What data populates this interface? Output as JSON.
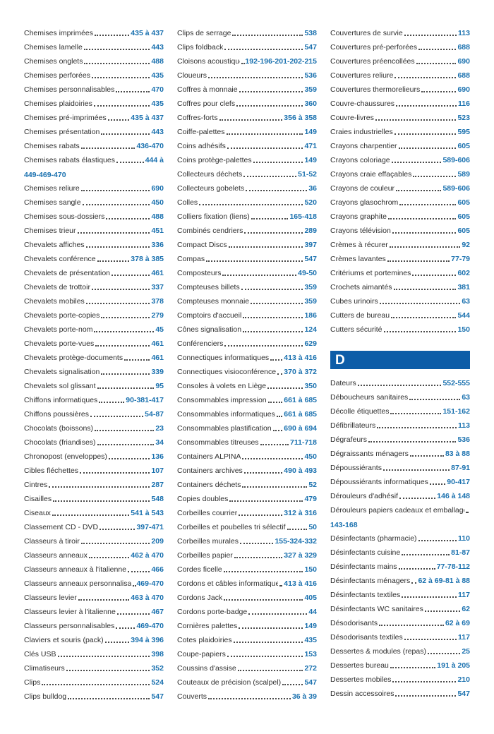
{
  "colors": {
    "label": "#2f2f2f",
    "pages": "#1a71af",
    "leader": "#4a4a4a",
    "section_bar": "#0d5da8",
    "section_letter": "#ffffff"
  },
  "columns": [
    {
      "items": [
        {
          "label": "Chemises imprimées",
          "pages": "435 à 437"
        },
        {
          "label": "Chemises lamelle",
          "pages": "443"
        },
        {
          "label": "Chemises onglets",
          "pages": "488"
        },
        {
          "label": "Chemises perforées",
          "pages": "435"
        },
        {
          "label": "Chemises personnalisables",
          "pages": "470"
        },
        {
          "label": "Chemises plaidoiries",
          "pages": "435"
        },
        {
          "label": "Chemises pré-imprimées",
          "pages": "435 à 437"
        },
        {
          "label": "Chemises présentation",
          "pages": "443"
        },
        {
          "label": "Chemises rabats",
          "pages": "436-470"
        },
        {
          "label": "Chemises rabats élastiques",
          "pages": "444 à",
          "cont": "449-469-470"
        },
        {
          "label": "Chemises reliure",
          "pages": "690"
        },
        {
          "label": "Chemises sangle",
          "pages": "450"
        },
        {
          "label": "Chemises sous-dossiers",
          "pages": "488"
        },
        {
          "label": "Chemises trieur",
          "pages": "451"
        },
        {
          "label": "Chevalets affiches",
          "pages": "336"
        },
        {
          "label": "Chevalets conférence",
          "pages": "378 à 385"
        },
        {
          "label": "Chevalets de présentation",
          "pages": "461"
        },
        {
          "label": "Chevalets de trottoir",
          "pages": "337"
        },
        {
          "label": "Chevalets mobiles",
          "pages": "378"
        },
        {
          "label": "Chevalets porte-copies",
          "pages": "279"
        },
        {
          "label": "Chevalets porte-nom",
          "pages": "45"
        },
        {
          "label": "Chevalets porte-vues",
          "pages": "461"
        },
        {
          "label": "Chevalets protège-documents",
          "pages": "461"
        },
        {
          "label": "Chevalets signalisation",
          "pages": "339"
        },
        {
          "label": "Chevalets sol glissant",
          "pages": "95"
        },
        {
          "label": "Chiffons informatiques",
          "pages": "90-381-417"
        },
        {
          "label": "Chiffons poussières",
          "pages": "54-87"
        },
        {
          "label": "Chocolats (boissons)",
          "pages": "23"
        },
        {
          "label": "Chocolats (friandises)",
          "pages": "34"
        },
        {
          "label": "Chronopost (enveloppes)",
          "pages": "136"
        },
        {
          "label": "Cibles fléchettes",
          "pages": "107"
        },
        {
          "label": "Cintres",
          "pages": "287"
        },
        {
          "label": "Cisailles",
          "pages": "548"
        },
        {
          "label": "Ciseaux",
          "pages": "541 à 543"
        },
        {
          "label": "Classement CD - DVD",
          "pages": "397-471"
        },
        {
          "label": "Classeurs à tiroir",
          "pages": "209"
        },
        {
          "label": "Classeurs anneaux",
          "pages": "462 à 470"
        },
        {
          "label": "Classeurs anneaux à l'italienne",
          "pages": "466"
        },
        {
          "label": "Classeurs anneaux personnalisables",
          "pages": "469-470"
        },
        {
          "label": "Classeurs levier",
          "pages": "463 à 470"
        },
        {
          "label": "Classeurs levier à l'italienne",
          "pages": "467"
        },
        {
          "label": "Classeurs personnalisables",
          "pages": "469-470"
        },
        {
          "label": "Claviers et souris (pack)",
          "pages": "394 à 396"
        },
        {
          "label": "Clés USB",
          "pages": "398"
        },
        {
          "label": "Climatiseurs",
          "pages": "352"
        },
        {
          "label": "Clips",
          "pages": "524"
        },
        {
          "label": "Clips bulldog",
          "pages": "547"
        }
      ]
    },
    {
      "items": [
        {
          "label": "Clips de serrage",
          "pages": "538"
        },
        {
          "label": "Clips foldback",
          "pages": "547"
        },
        {
          "label": "Cloisons acoustiques",
          "pages": "192-196-201-202-215"
        },
        {
          "label": "Cloueurs",
          "pages": "536"
        },
        {
          "label": "Coffres à monnaie",
          "pages": "359"
        },
        {
          "label": "Coffres pour clefs",
          "pages": "360"
        },
        {
          "label": "Coffres-forts",
          "pages": "356 à 358"
        },
        {
          "label": "Coiffe-palettes",
          "pages": "149"
        },
        {
          "label": "Coins adhésifs",
          "pages": "471"
        },
        {
          "label": "Coins protège-palettes",
          "pages": "149"
        },
        {
          "label": "Collecteurs déchets",
          "pages": "51-52"
        },
        {
          "label": "Collecteurs gobelets",
          "pages": "36"
        },
        {
          "label": "Colles",
          "pages": "520"
        },
        {
          "label": "Colliers fixation (liens)",
          "pages": "165-418"
        },
        {
          "label": "Combinés cendriers",
          "pages": "289"
        },
        {
          "label": "Compact Discs",
          "pages": "397"
        },
        {
          "label": "Compas",
          "pages": "547"
        },
        {
          "label": "Composteurs",
          "pages": "49-50"
        },
        {
          "label": "Compteuses billets",
          "pages": "359"
        },
        {
          "label": "Compteuses monnaie",
          "pages": "359"
        },
        {
          "label": "Comptoirs d'accueil",
          "pages": "186"
        },
        {
          "label": "Cônes signalisation",
          "pages": "124"
        },
        {
          "label": "Conférenciers",
          "pages": "629"
        },
        {
          "label": "Connectiques informatiques",
          "pages": "413 à 416"
        },
        {
          "label": "Connectiques visioconférence",
          "pages": "370 à 372"
        },
        {
          "label": "Consoles à volets en Liège",
          "pages": "350"
        },
        {
          "label": "Consommables impression",
          "pages": "661 à 685"
        },
        {
          "label": "Consommables informatiques",
          "pages": "661 à 685"
        },
        {
          "label": "Consommables plastification",
          "pages": "690 à 694"
        },
        {
          "label": "Consommables titreuses",
          "pages": "711-718"
        },
        {
          "label": "Containers ALPINA",
          "pages": "450"
        },
        {
          "label": "Containers archives",
          "pages": "490 à 493"
        },
        {
          "label": "Containers déchets",
          "pages": "52"
        },
        {
          "label": "Copies doubles",
          "pages": "479"
        },
        {
          "label": "Corbeilles courrier",
          "pages": "312 à 316"
        },
        {
          "label": "Corbeilles et poubelles tri sélectif",
          "pages": "50"
        },
        {
          "label": "Corbeilles murales",
          "pages": "155-324-332"
        },
        {
          "label": "Corbeilles papier",
          "pages": "327 à 329"
        },
        {
          "label": "Cordes ficelle",
          "pages": "150"
        },
        {
          "label": "Cordons et câbles informatiques",
          "pages": "413 à 416"
        },
        {
          "label": "Cordons Jack",
          "pages": "405"
        },
        {
          "label": "Cordons porte-badge",
          "pages": "44"
        },
        {
          "label": "Cornières palettes",
          "pages": "149"
        },
        {
          "label": "Cotes plaidoiries",
          "pages": "435"
        },
        {
          "label": "Coupe-papiers",
          "pages": "153"
        },
        {
          "label": "Coussins d'assise",
          "pages": "272"
        },
        {
          "label": "Couteaux de précision (scalpel)",
          "pages": "547"
        },
        {
          "label": "Couverts",
          "pages": "36 à 39"
        }
      ]
    },
    {
      "items": [
        {
          "label": "Couvertures de survie",
          "pages": "113"
        },
        {
          "label": "Couvertures pré-perforées",
          "pages": "688"
        },
        {
          "label": "Couvertures préencollées",
          "pages": "690"
        },
        {
          "label": "Couvertures reliure",
          "pages": "688"
        },
        {
          "label": "Couvertures thermorelieurs",
          "pages": "690"
        },
        {
          "label": "Couvre-chaussures",
          "pages": "116"
        },
        {
          "label": "Couvre-livres",
          "pages": "523"
        },
        {
          "label": "Craies industrielles",
          "pages": "595"
        },
        {
          "label": "Crayons charpentier",
          "pages": "605"
        },
        {
          "label": "Crayons coloriage",
          "pages": "589-606"
        },
        {
          "label": "Crayons craie effaçables",
          "pages": "589"
        },
        {
          "label": "Crayons de couleur",
          "pages": "589-606"
        },
        {
          "label": "Crayons glasochrom",
          "pages": "605"
        },
        {
          "label": "Crayons graphite",
          "pages": "605"
        },
        {
          "label": "Crayons télévision",
          "pages": "605"
        },
        {
          "label": "Crèmes à récurer",
          "pages": "92"
        },
        {
          "label": "Crèmes lavantes",
          "pages": "77-79"
        },
        {
          "label": "Critériums et portemines",
          "pages": "602"
        },
        {
          "label": "Crochets aimantés",
          "pages": "381"
        },
        {
          "label": "Cubes urinoirs",
          "pages": "63"
        },
        {
          "label": "Cutters de bureau",
          "pages": "544"
        },
        {
          "label": "Cutters sécurité",
          "pages": "150"
        },
        {
          "section": "D"
        },
        {
          "label": "Dateurs",
          "pages": "552-555"
        },
        {
          "label": "Déboucheurs sanitaires",
          "pages": "63"
        },
        {
          "label": "Décolle étiquettes",
          "pages": "151-162"
        },
        {
          "label": "Défibrillateurs",
          "pages": "113"
        },
        {
          "label": "Dégrafeurs",
          "pages": "536"
        },
        {
          "label": "Dégraissants ménagers",
          "pages": "83 à 88"
        },
        {
          "label": "Dépoussiérants",
          "pages": "87-91"
        },
        {
          "label": "Dépoussiérants informatiques",
          "pages": "90-417"
        },
        {
          "label": "Dérouleurs d'adhésif",
          "pages": "146 à 148"
        },
        {
          "label": "Dérouleurs papiers cadeaux et emballage",
          "pages": "",
          "cont": "143-168"
        },
        {
          "label": "Désinfectants (pharmacie)",
          "pages": "110"
        },
        {
          "label": "Désinfectants cuisine",
          "pages": "81-87"
        },
        {
          "label": "Désinfectants mains",
          "pages": "77-78-112"
        },
        {
          "label": "Désinfectants ménagers",
          "pages": "62 à 69-81 à 88"
        },
        {
          "label": "Désinfectants textiles",
          "pages": "117"
        },
        {
          "label": "Désinfectants WC sanitaires",
          "pages": "62"
        },
        {
          "label": "Désodorisants",
          "pages": "62 à 69"
        },
        {
          "label": "Désodorisants textiles",
          "pages": "117"
        },
        {
          "label": "Dessertes & modules (repas)",
          "pages": "25"
        },
        {
          "label": "Dessertes bureau",
          "pages": "191 à 205"
        },
        {
          "label": "Dessertes mobiles",
          "pages": "210"
        },
        {
          "label": "Dessin accessoires",
          "pages": "547"
        }
      ]
    }
  ]
}
